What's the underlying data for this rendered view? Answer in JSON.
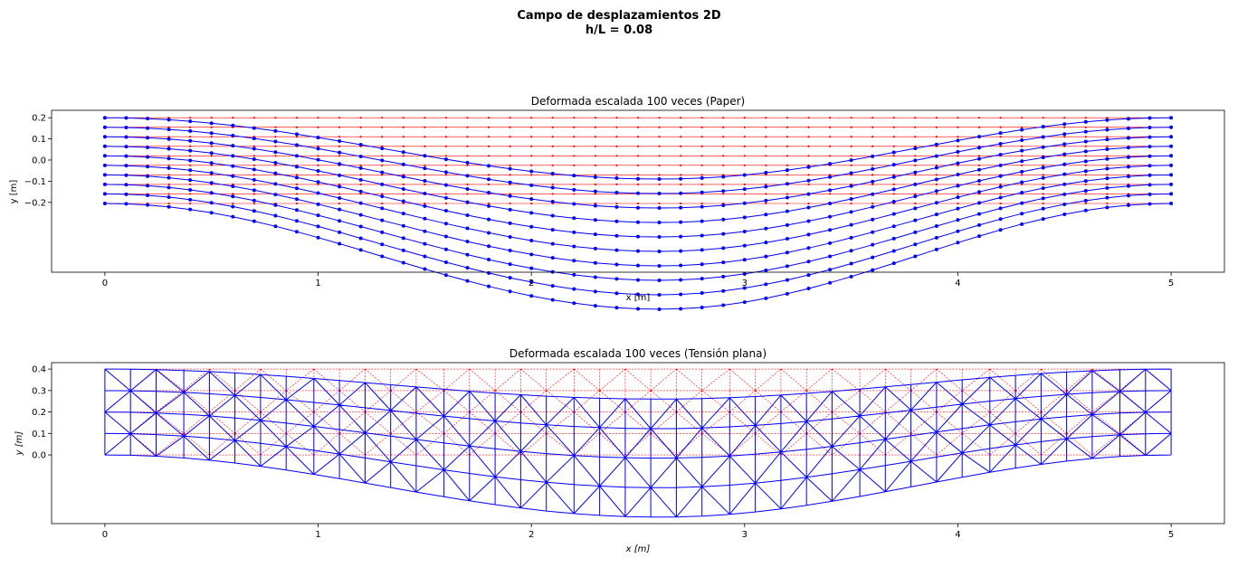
{
  "figure": {
    "suptitle_line1": "Campo de desplazamientos 2D",
    "suptitle_line2": "h/L = 0.08"
  },
  "colors": {
    "original_mesh": "#ff0000",
    "deformed_mesh": "#0000ff",
    "axes_frame": "#000000",
    "background": "#ffffff"
  },
  "chart_data": [
    {
      "type": "line",
      "title": "Deformada escalada 100 veces (Paper)",
      "xlabel": "x [m]",
      "ylabel": "y [m]",
      "xlim": [
        -0.25,
        5.25
      ],
      "ylim": [
        -0.53,
        0.235
      ],
      "xticks": [
        0,
        1,
        2,
        3,
        4,
        5
      ],
      "xtick_labels": [
        "0",
        "1",
        "2",
        "3",
        "4",
        "5"
      ],
      "yticks": [
        0.2,
        0.1,
        0.0,
        -0.1,
        -0.2
      ],
      "ytick_labels": [
        "0.2",
        "0.1",
        "0.0",
        "−0.1",
        "−0.2"
      ],
      "x_nodes": [
        0,
        0.1,
        0.2,
        0.3,
        0.4,
        0.5,
        0.6,
        0.7,
        0.8,
        0.9,
        1.0,
        1.1,
        1.2,
        1.3,
        1.4,
        1.5,
        1.6,
        1.7,
        1.8,
        1.9,
        2.0,
        2.1,
        2.2,
        2.3,
        2.4,
        2.5,
        2.6,
        2.7,
        2.8,
        2.9,
        3.0,
        3.1,
        3.2,
        3.3,
        3.4,
        3.5,
        3.6,
        3.7,
        3.8,
        3.9,
        4.0,
        4.1,
        4.2,
        4.3,
        4.4,
        4.5,
        4.6,
        4.7,
        4.8,
        4.9,
        5.0
      ],
      "layer_y": [
        0.2,
        0.155,
        0.11,
        0.065,
        0.02,
        -0.025,
        -0.07,
        -0.115,
        -0.16,
        -0.205
      ],
      "deflection_max_top": 0.29,
      "deflection_max_bottom": 0.5,
      "deflection_peak_x": 2.6,
      "series": [
        {
          "name": "",
          "style": "original",
          "color": "#ff0000"
        },
        {
          "name": "",
          "style": "deformed",
          "color": "#0000ff"
        }
      ]
    },
    {
      "type": "line",
      "title": "Deformada escalada 100 veces (Tensión plana)",
      "xlabel": "x [m]",
      "ylabel": "y [m]",
      "xlim": [
        -0.25,
        5.25
      ],
      "ylim": [
        -0.32,
        0.43
      ],
      "xticks": [
        0,
        1,
        2,
        3,
        4,
        5
      ],
      "xtick_labels": [
        "0",
        "1",
        "2",
        "3",
        "4",
        "5"
      ],
      "yticks": [
        0.4,
        0.3,
        0.2,
        0.1,
        0.0
      ],
      "ytick_labels": [
        "0.4",
        "0.3",
        "0.2",
        "0.1",
        "0.0"
      ],
      "x_nodes": [
        0,
        0.12,
        0.24,
        0.37,
        0.49,
        0.61,
        0.73,
        0.85,
        0.98,
        1.1,
        1.22,
        1.34,
        1.46,
        1.59,
        1.71,
        1.83,
        1.95,
        2.07,
        2.2,
        2.32,
        2.44,
        2.56,
        2.68,
        2.8,
        2.93,
        3.05,
        3.17,
        3.29,
        3.41,
        3.54,
        3.66,
        3.78,
        3.9,
        4.02,
        4.15,
        4.27,
        4.39,
        4.51,
        4.63,
        4.76,
        4.88,
        5.0
      ],
      "layer_y": [
        0.4,
        0.3,
        0.2,
        0.1,
        0.0
      ],
      "deflection_max_top": 0.14,
      "deflection_max_bottom": 0.29,
      "deflection_peak_x": 2.6,
      "series": [
        {
          "name": "",
          "style": "original",
          "color": "#ff0000"
        },
        {
          "name": "",
          "style": "deformed",
          "color": "#0000ff"
        }
      ]
    }
  ]
}
